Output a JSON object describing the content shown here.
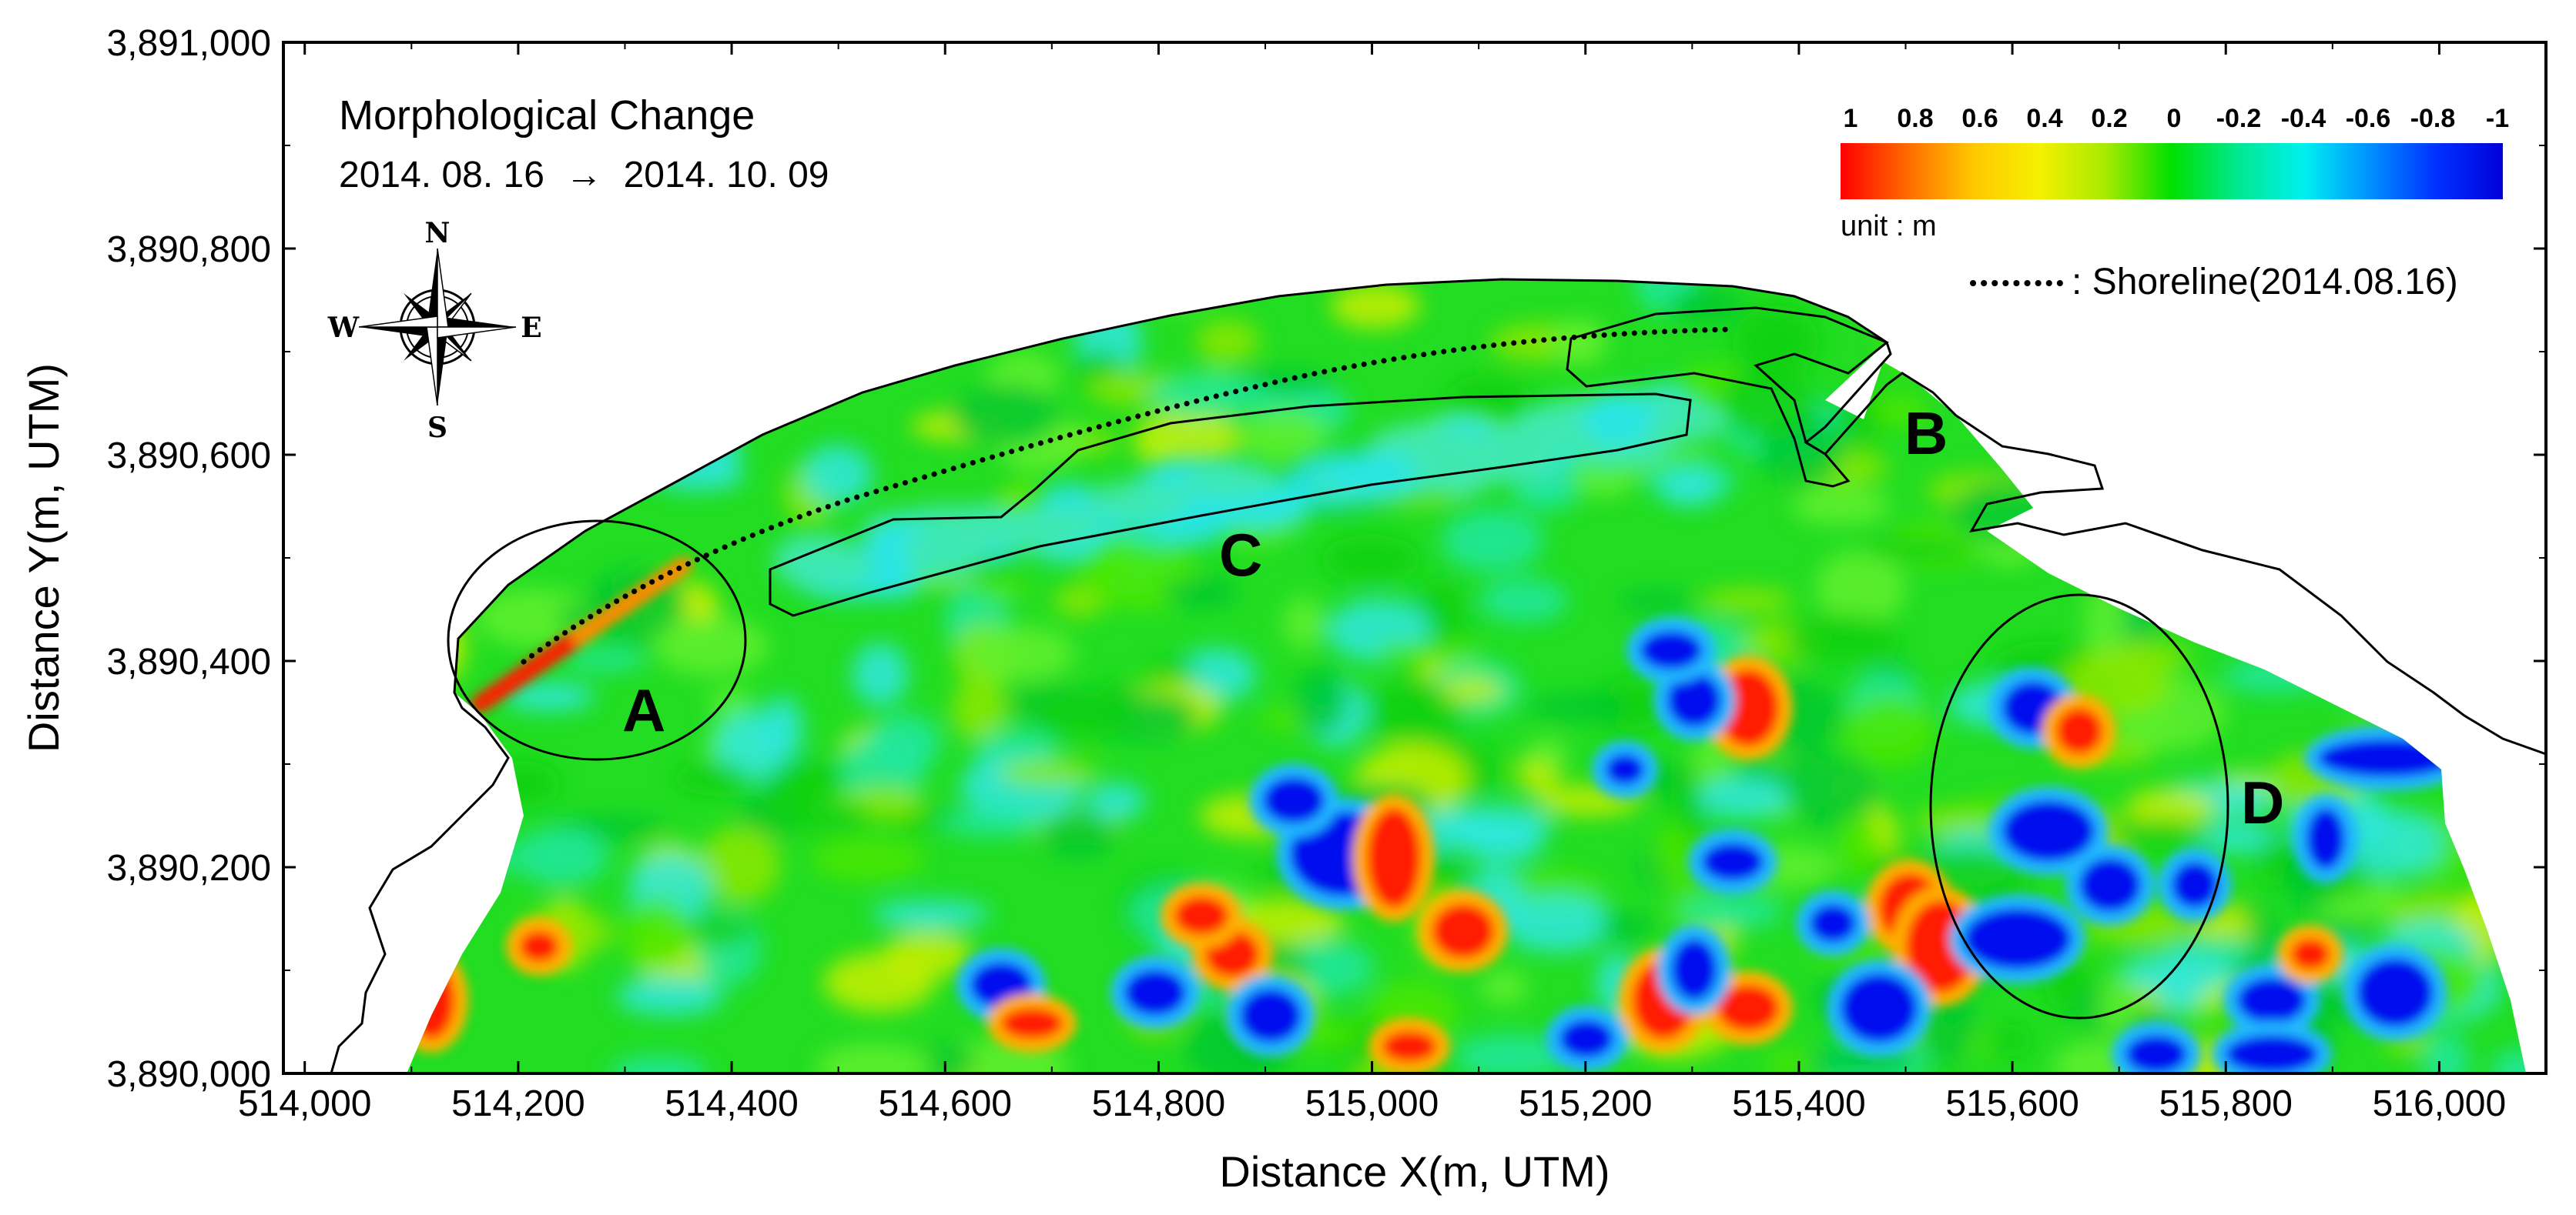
{
  "title": "Morphological Change",
  "date_range": {
    "from": "2014. 08. 16",
    "to": "2014. 10. 09",
    "arrow": "→"
  },
  "axes": {
    "x_label": "Distance X(m, UTM)",
    "y_label": "Distance Y(m, UTM)",
    "x_range": [
      513980,
      516100
    ],
    "y_range": [
      3890000,
      3891000
    ],
    "x_ticks": [
      "514,000",
      "514,200",
      "514,400",
      "514,600",
      "514,800",
      "515,000",
      "515,200",
      "515,400",
      "515,600",
      "515,800",
      "516,000"
    ],
    "y_ticks": [
      "3,890,000",
      "3,890,200",
      "3,890,400",
      "3,890,600",
      "3,890,800",
      "3,891,000"
    ]
  },
  "colorbar": {
    "tick_labels": [
      "1",
      "0.8",
      "0.6",
      "0.4",
      "0.2",
      "0",
      "-0.2",
      "-0.4",
      "-0.6",
      "-0.8",
      "-1"
    ],
    "unit_label": "unit : m",
    "colors": [
      "#ff0000",
      "#ff6a00",
      "#ffc800",
      "#f5f000",
      "#a8ea00",
      "#00e000",
      "#00e890",
      "#00f0f0",
      "#0090ff",
      "#0030ff",
      "#0000d8"
    ]
  },
  "legend": {
    "shoreline_label": ": Shoreline(2014.08.16)"
  },
  "compass": {
    "n": "N",
    "s": "S",
    "e": "E",
    "w": "W"
  },
  "regions": {
    "a": "A",
    "b": "B",
    "c": "C",
    "d": "D"
  },
  "colors": {
    "field_green": "#22dd22",
    "accretion_red": "#ff1a00",
    "erosion_blue": "#0010ee",
    "cyan": "#22e0e8"
  }
}
